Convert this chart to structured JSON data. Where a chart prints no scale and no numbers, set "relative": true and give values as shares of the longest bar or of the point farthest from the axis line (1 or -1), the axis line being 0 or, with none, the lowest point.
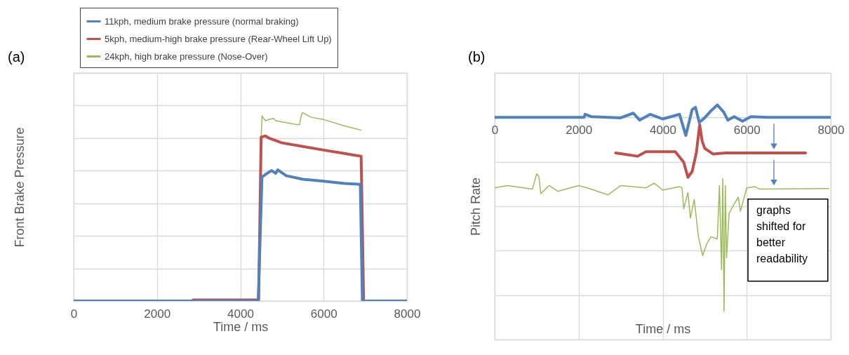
{
  "chart_data": [
    {
      "type": "line",
      "title": "(a)",
      "xlabel": "Time / ms",
      "ylabel": "Front Brake Pressure",
      "relative": true,
      "xlim": [
        0,
        8000
      ],
      "xticks": [
        0,
        2000,
        4000,
        6000,
        8000
      ],
      "grid": true,
      "legend": "top",
      "tick_labels": "x",
      "series": [
        {
          "name": "11kph, medium brake pressure (normal braking)",
          "color": "#4f81bd",
          "x": [
            0,
            4430,
            4520,
            4600,
            4750,
            4850,
            4900,
            5100,
            5500,
            6000,
            6500,
            6880,
            6930,
            8000
          ],
          "values": [
            0,
            0,
            0.658,
            0.671,
            0.692,
            0.677,
            0.696,
            0.665,
            0.646,
            0.636,
            0.624,
            0.619,
            0,
            0
          ]
        },
        {
          "name": "5kph, medium-high brake pressure (Rear-Wheel Lift Up)",
          "color": "#c0504d",
          "x": [
            2870,
            4440,
            4500,
            4600,
            4700,
            5000,
            5500,
            6000,
            6500,
            6900,
            6960,
            7450
          ],
          "values": [
            0.006,
            0.006,
            0.87,
            0.876,
            0.863,
            0.839,
            0.82,
            0.801,
            0.783,
            0.768,
            0,
            0
          ]
        },
        {
          "name": "24kph, high brake pressure (Nose-Over)",
          "color": "#9bbb59",
          "x": [
            4470,
            4520,
            4560,
            4600,
            4700,
            4800,
            4850,
            5000,
            5300,
            5420,
            5460,
            5490,
            5700,
            6000,
            6500,
            6900
          ],
          "values": [
            0.683,
            0.981,
            0.969,
            0.957,
            0.963,
            0.969,
            0.957,
            0.95,
            0.938,
            0.935,
            0.981,
            1,
            0.975,
            0.963,
            0.929,
            0.907
          ]
        }
      ]
    },
    {
      "type": "line",
      "title": "(b)",
      "xlabel": "Time / ms",
      "ylabel": "Pitch Rate",
      "relative": true,
      "xlim": [
        0,
        8000
      ],
      "xticks": [
        0,
        2000,
        4000,
        6000,
        8000
      ],
      "grid": true,
      "tick_labels": "x",
      "annotations": [
        "graphs shifted for better readability"
      ],
      "series": [
        {
          "color": "#4f81bd",
          "x": [
            0,
            2130,
            2150,
            2300,
            3000,
            3300,
            3450,
            3700,
            4000,
            4200,
            4400,
            4550,
            4700,
            4780,
            4870,
            5000,
            5150,
            5300,
            5450,
            5550,
            5700,
            5900,
            6100,
            6500,
            8000
          ],
          "values": [
            0,
            0,
            0.016,
            0.004,
            -0.002,
            0.022,
            -0.014,
            0.016,
            -0.008,
            0.004,
            0.016,
            -0.093,
            0.04,
            0.052,
            -0.026,
            -0.002,
            0.034,
            0.064,
            0.028,
            -0.014,
            0.004,
            -0.02,
            0.004,
            0,
            0
          ]
        },
        {
          "color": "#c0504d",
          "x": [
            2880,
            3400,
            3600,
            4300,
            4500,
            4600,
            4700,
            4800,
            4880,
            4940,
            5000,
            5200,
            5500,
            7400
          ],
          "values": [
            -0.183,
            -0.2,
            -0.177,
            -0.177,
            -0.231,
            -0.309,
            -0.279,
            -0.183,
            -0.038,
            -0.123,
            -0.159,
            -0.189,
            -0.183,
            -0.183
          ]
        },
        {
          "color": "#9bbb59",
          "x": [
            0,
            300,
            900,
            1000,
            1050,
            1100,
            1300,
            1500,
            2000,
            2200,
            2700,
            3000,
            3600,
            3800,
            4000,
            4400,
            4460,
            4500,
            4600,
            4660,
            4750,
            4850,
            4950,
            5050,
            5150,
            5300,
            5350,
            5400,
            5430,
            5460,
            5490,
            5520,
            5580,
            5700,
            5800,
            5850,
            6000,
            6200,
            6300,
            7950
          ],
          "values": [
            -0.363,
            -0.351,
            -0.369,
            -0.291,
            -0.303,
            -0.393,
            -0.351,
            -0.381,
            -0.351,
            -0.363,
            -0.399,
            -0.351,
            -0.363,
            -0.339,
            -0.375,
            -0.357,
            -0.363,
            -0.471,
            -0.387,
            -0.519,
            -0.423,
            -0.615,
            -0.712,
            -0.651,
            -0.615,
            -0.627,
            -0.351,
            -0.784,
            -0.315,
            -1,
            -0.351,
            -0.723,
            -0.495,
            -0.447,
            -0.411,
            -0.483,
            -0.363,
            -0.357,
            -0.369,
            -0.367
          ]
        }
      ]
    }
  ]
}
